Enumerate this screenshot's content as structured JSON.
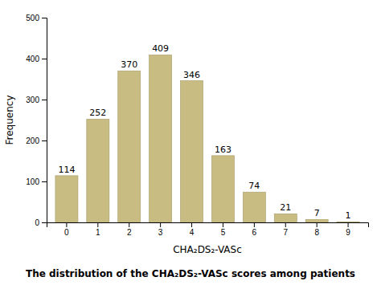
{
  "chart_data": {
    "type": "bar",
    "title": "The distribution of the CHA₂DS₂-VASc scores among patients",
    "xlabel": "CHA₂DS₂-VASc",
    "ylabel": "Frequency",
    "categories": [
      0,
      1,
      2,
      3,
      4,
      5,
      6,
      7,
      8,
      9
    ],
    "values": [
      114,
      252,
      370,
      409,
      346,
      163,
      74,
      21,
      7,
      1
    ],
    "color": "#c8bc82",
    "ylim": [
      0,
      500
    ],
    "yticks": [
      0,
      100,
      200,
      300,
      400,
      500
    ],
    "grid": false,
    "data_labels": true
  }
}
